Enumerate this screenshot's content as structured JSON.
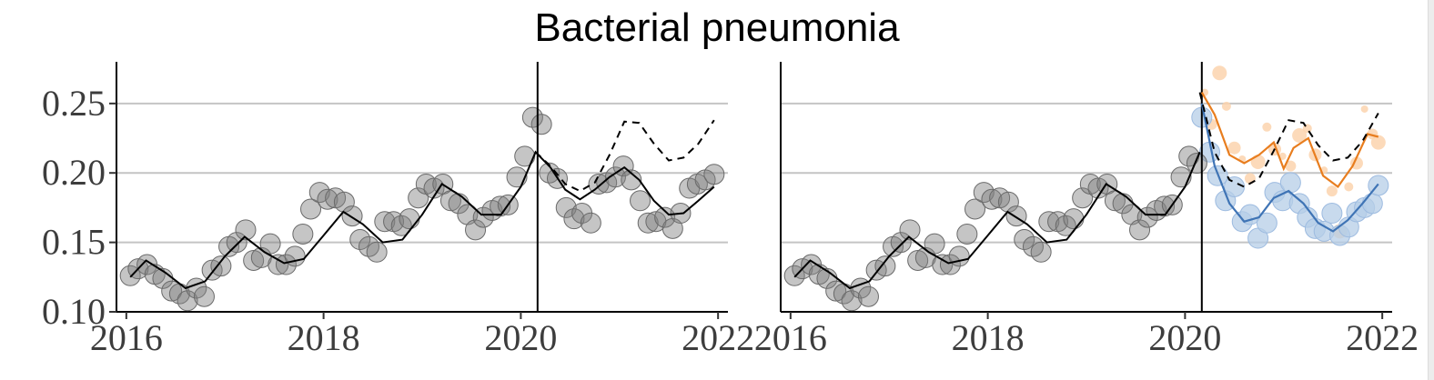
{
  "title": "Bacterial pneumonia",
  "chart_data": [
    {
      "type": "scatter",
      "panel": "left",
      "xlim": [
        2015.9,
        2022.1
      ],
      "ylim": [
        0.1,
        0.28
      ],
      "x_ticks": [
        2016,
        2018,
        2020,
        2022
      ],
      "x_tick_labels": [
        "2016",
        "2018",
        "2020",
        "2022"
      ],
      "y_ticks": [
        0.1,
        0.15,
        0.2,
        0.25
      ],
      "y_tick_labels": [
        "0.10",
        "0.15",
        "0.20",
        "0.25"
      ],
      "grid": "horizontal major",
      "intervention_x": 2020.17,
      "colors": {
        "points": "#7f7f7f",
        "fit": "#000000",
        "counterfactual": "#000000"
      },
      "observed": {
        "x": [
          2016.04,
          2016.12,
          2016.21,
          2016.29,
          2016.37,
          2016.46,
          2016.54,
          2016.62,
          2016.71,
          2016.79,
          2016.87,
          2016.96,
          2017.04,
          2017.12,
          2017.21,
          2017.29,
          2017.37,
          2017.46,
          2017.54,
          2017.62,
          2017.71,
          2017.79,
          2017.87,
          2017.96,
          2018.04,
          2018.12,
          2018.21,
          2018.29,
          2018.37,
          2018.46,
          2018.54,
          2018.62,
          2018.71,
          2018.79,
          2018.87,
          2018.96,
          2019.04,
          2019.12,
          2019.21,
          2019.29,
          2019.37,
          2019.46,
          2019.54,
          2019.62,
          2019.71,
          2019.79,
          2019.87,
          2019.96,
          2020.04,
          2020.12,
          2020.21,
          2020.29,
          2020.37,
          2020.46,
          2020.54,
          2020.62,
          2020.71,
          2020.79,
          2020.87,
          2020.96,
          2021.04,
          2021.12,
          2021.21,
          2021.29,
          2021.37,
          2021.46,
          2021.54,
          2021.62,
          2021.71,
          2021.79,
          2021.87,
          2021.96
        ],
        "y": [
          0.126,
          0.131,
          0.134,
          0.127,
          0.124,
          0.115,
          0.113,
          0.108,
          0.117,
          0.111,
          0.13,
          0.133,
          0.147,
          0.15,
          0.159,
          0.137,
          0.139,
          0.149,
          0.134,
          0.134,
          0.14,
          0.156,
          0.174,
          0.186,
          0.181,
          0.182,
          0.179,
          0.169,
          0.152,
          0.147,
          0.143,
          0.165,
          0.165,
          0.162,
          0.167,
          0.182,
          0.192,
          0.189,
          0.192,
          0.18,
          0.178,
          0.17,
          0.159,
          0.168,
          0.173,
          0.176,
          0.177,
          0.197,
          0.212,
          0.24,
          0.235,
          0.2,
          0.196,
          0.175,
          0.167,
          0.171,
          0.164,
          0.192,
          0.193,
          0.197,
          0.205,
          0.195,
          0.18,
          0.164,
          0.165,
          0.168,
          0.16,
          0.171,
          0.189,
          0.192,
          0.195,
          0.199
        ]
      },
      "fit": {
        "x": [
          2016.04,
          2016.2,
          2016.4,
          2016.6,
          2016.8,
          2017.0,
          2017.2,
          2017.4,
          2017.6,
          2017.8,
          2018.0,
          2018.2,
          2018.4,
          2018.6,
          2018.8,
          2019.0,
          2019.2,
          2019.4,
          2019.6,
          2019.8,
          2020.0,
          2020.15,
          2020.3,
          2020.45,
          2020.6,
          2020.75,
          2020.9,
          2021.05,
          2021.2,
          2021.35,
          2021.5,
          2021.65,
          2021.8,
          2021.96
        ],
        "y": [
          0.125,
          0.137,
          0.128,
          0.117,
          0.122,
          0.14,
          0.154,
          0.143,
          0.135,
          0.138,
          0.155,
          0.172,
          0.163,
          0.15,
          0.152,
          0.17,
          0.192,
          0.183,
          0.17,
          0.17,
          0.19,
          0.215,
          0.204,
          0.188,
          0.181,
          0.188,
          0.197,
          0.204,
          0.195,
          0.18,
          0.17,
          0.171,
          0.18,
          0.19
        ]
      },
      "counterfactual": {
        "x": [
          2020.15,
          2020.3,
          2020.45,
          2020.6,
          2020.75,
          2020.9,
          2021.05,
          2021.2,
          2021.35,
          2021.5,
          2021.65,
          2021.8,
          2021.96
        ],
        "y": [
          0.215,
          0.205,
          0.192,
          0.187,
          0.193,
          0.213,
          0.237,
          0.236,
          0.221,
          0.209,
          0.211,
          0.221,
          0.238
        ]
      }
    },
    {
      "type": "scatter",
      "panel": "right",
      "xlim": [
        2015.9,
        2022.1
      ],
      "ylim": [
        0.1,
        0.28
      ],
      "x_ticks": [
        2016,
        2018,
        2020,
        2022
      ],
      "x_tick_labels": [
        "2016",
        "2018",
        "2020",
        "2022"
      ],
      "grid": "horizontal major",
      "intervention_x": 2020.17,
      "colors": {
        "points": "#7f7f7f",
        "fit": "#000000",
        "counterfactual": "#000000",
        "upper": "#e87d1e",
        "upper_points": "#fbd3ae",
        "lower": "#3f74b5",
        "lower_points": "#b5cde7"
      },
      "observed": {
        "x": [
          2016.04,
          2016.12,
          2016.21,
          2016.29,
          2016.37,
          2016.46,
          2016.54,
          2016.62,
          2016.71,
          2016.79,
          2016.87,
          2016.96,
          2017.04,
          2017.12,
          2017.21,
          2017.29,
          2017.37,
          2017.46,
          2017.54,
          2017.62,
          2017.71,
          2017.79,
          2017.87,
          2017.96,
          2018.04,
          2018.12,
          2018.21,
          2018.29,
          2018.37,
          2018.46,
          2018.54,
          2018.62,
          2018.71,
          2018.79,
          2018.87,
          2018.96,
          2019.04,
          2019.12,
          2019.21,
          2019.29,
          2019.37,
          2019.46,
          2019.54,
          2019.62,
          2019.71,
          2019.79,
          2019.87,
          2019.96,
          2020.04,
          2020.12
        ],
        "y": [
          0.126,
          0.131,
          0.134,
          0.127,
          0.124,
          0.115,
          0.113,
          0.108,
          0.117,
          0.111,
          0.13,
          0.133,
          0.147,
          0.15,
          0.159,
          0.137,
          0.139,
          0.149,
          0.134,
          0.134,
          0.14,
          0.156,
          0.174,
          0.186,
          0.181,
          0.182,
          0.179,
          0.169,
          0.152,
          0.147,
          0.143,
          0.165,
          0.165,
          0.162,
          0.167,
          0.182,
          0.192,
          0.189,
          0.192,
          0.18,
          0.178,
          0.17,
          0.159,
          0.168,
          0.173,
          0.176,
          0.177,
          0.197,
          0.212,
          0.207
        ]
      },
      "fit": {
        "x": [
          2016.04,
          2016.2,
          2016.4,
          2016.6,
          2016.8,
          2017.0,
          2017.2,
          2017.4,
          2017.6,
          2017.8,
          2018.0,
          2018.2,
          2018.4,
          2018.6,
          2018.8,
          2019.0,
          2019.2,
          2019.4,
          2019.6,
          2019.8,
          2020.0,
          2020.15
        ],
        "y": [
          0.125,
          0.137,
          0.128,
          0.117,
          0.122,
          0.14,
          0.154,
          0.143,
          0.135,
          0.138,
          0.155,
          0.172,
          0.163,
          0.15,
          0.152,
          0.17,
          0.192,
          0.183,
          0.17,
          0.17,
          0.19,
          0.215
        ]
      },
      "counterfactual": {
        "x": [
          2020.15,
          2020.3,
          2020.45,
          2020.6,
          2020.75,
          2020.9,
          2021.05,
          2021.2,
          2021.35,
          2021.5,
          2021.65,
          2021.8,
          2021.96
        ],
        "y": [
          0.258,
          0.215,
          0.195,
          0.19,
          0.196,
          0.216,
          0.238,
          0.236,
          0.22,
          0.209,
          0.211,
          0.223,
          0.243
        ]
      },
      "upper_fit": {
        "x": [
          2020.17,
          2020.3,
          2020.45,
          2020.6,
          2020.75,
          2020.9,
          2021.0,
          2021.1,
          2021.25,
          2021.4,
          2021.55,
          2021.7,
          2021.85,
          2021.96
        ],
        "y": [
          0.258,
          0.242,
          0.213,
          0.207,
          0.213,
          0.222,
          0.203,
          0.218,
          0.225,
          0.198,
          0.19,
          0.205,
          0.228,
          0.226
        ]
      },
      "upper_points": {
        "x": [
          2020.2,
          2020.27,
          2020.35,
          2020.42,
          2020.5,
          2020.58,
          2020.66,
          2020.74,
          2020.83,
          2020.91,
          2020.99,
          2021.07,
          2021.16,
          2021.24,
          2021.32,
          2021.41,
          2021.49,
          2021.57,
          2021.66,
          2021.74,
          2021.82,
          2021.9,
          2021.96
        ],
        "y": [
          0.258,
          0.235,
          0.272,
          0.248,
          0.218,
          0.21,
          0.196,
          0.208,
          0.233,
          0.217,
          0.212,
          0.205,
          0.227,
          0.232,
          0.213,
          0.202,
          0.187,
          0.158,
          0.19,
          0.207,
          0.246,
          0.228,
          0.222
        ]
      },
      "lower_fit": {
        "x": [
          2020.17,
          2020.3,
          2020.45,
          2020.6,
          2020.75,
          2020.9,
          2021.05,
          2021.2,
          2021.35,
          2021.5,
          2021.65,
          2021.8,
          2021.96
        ],
        "y": [
          0.25,
          0.205,
          0.178,
          0.165,
          0.168,
          0.182,
          0.187,
          0.178,
          0.164,
          0.158,
          0.166,
          0.178,
          0.192
        ]
      },
      "lower_points": {
        "x": [
          2020.17,
          2020.25,
          2020.33,
          2020.41,
          2020.5,
          2020.58,
          2020.66,
          2020.74,
          2020.83,
          2020.91,
          2020.99,
          2021.07,
          2021.16,
          2021.24,
          2021.32,
          2021.41,
          2021.49,
          2021.57,
          2021.66,
          2021.74,
          2021.82,
          2021.9,
          2021.96
        ],
        "y": [
          0.24,
          0.215,
          0.198,
          0.18,
          0.19,
          0.165,
          0.17,
          0.153,
          0.164,
          0.186,
          0.18,
          0.193,
          0.178,
          0.168,
          0.16,
          0.158,
          0.171,
          0.155,
          0.161,
          0.172,
          0.175,
          0.178,
          0.191
        ]
      }
    }
  ]
}
